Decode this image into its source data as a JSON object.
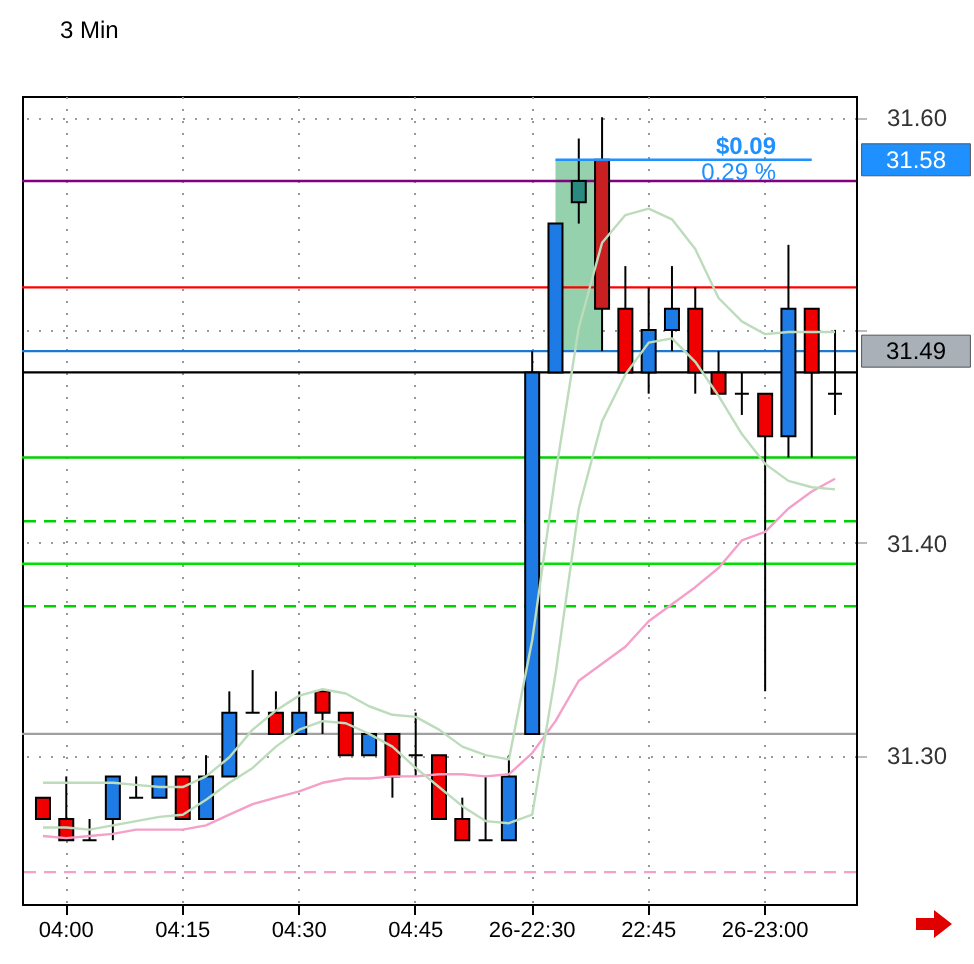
{
  "chart_data": {
    "type": "candlestick",
    "title": "3 Min",
    "categories": [
      null,
      "04:00",
      null,
      null,
      null,
      null,
      "04:15",
      null,
      null,
      null,
      null,
      "04:30",
      null,
      null,
      null,
      null,
      "04:45",
      null,
      null,
      null,
      null,
      "26-22:30",
      null,
      null,
      null,
      null,
      "22:45",
      null,
      null,
      null,
      null,
      "26-23:00",
      null,
      null,
      null
    ],
    "ohlc": [
      [
        31.28,
        31.28,
        31.27,
        31.27
      ],
      [
        31.27,
        31.29,
        31.26,
        31.26
      ],
      [
        31.26,
        31.27,
        31.26,
        31.26
      ],
      [
        31.27,
        31.29,
        31.26,
        31.29
      ],
      [
        31.28,
        31.29,
        31.28,
        31.28
      ],
      [
        31.28,
        31.29,
        31.28,
        31.29
      ],
      [
        31.29,
        31.29,
        31.27,
        31.27
      ],
      [
        31.27,
        31.3,
        31.27,
        31.29
      ],
      [
        31.29,
        31.33,
        31.29,
        31.32
      ],
      [
        31.32,
        31.34,
        31.32,
        31.32
      ],
      [
        31.32,
        31.33,
        31.31,
        31.31
      ],
      [
        31.31,
        31.33,
        31.31,
        31.32
      ],
      [
        31.33,
        31.33,
        31.31,
        31.32
      ],
      [
        31.32,
        31.32,
        31.3,
        31.3
      ],
      [
        31.3,
        31.31,
        31.3,
        31.31
      ],
      [
        31.31,
        31.31,
        31.28,
        31.29
      ],
      [
        31.3,
        31.32,
        31.29,
        31.3
      ],
      [
        31.3,
        31.3,
        31.27,
        31.27
      ],
      [
        31.27,
        31.28,
        31.26,
        31.26
      ],
      [
        31.26,
        31.29,
        31.26,
        31.26
      ],
      [
        31.26,
        31.3,
        31.26,
        31.29
      ],
      [
        31.31,
        31.49,
        31.31,
        31.48
      ],
      [
        31.48,
        31.55,
        31.48,
        31.55
      ],
      [
        31.56,
        31.59,
        31.55,
        31.57
      ],
      [
        31.58,
        31.6,
        31.49,
        31.51
      ],
      [
        31.51,
        31.53,
        31.48,
        31.48
      ],
      [
        31.48,
        31.52,
        31.47,
        31.5
      ],
      [
        31.5,
        31.53,
        31.49,
        31.51
      ],
      [
        31.51,
        31.52,
        31.47,
        31.48
      ],
      [
        31.48,
        31.49,
        31.47,
        31.47
      ],
      [
        31.47,
        31.48,
        31.46,
        31.47
      ],
      [
        31.47,
        31.47,
        31.33,
        31.45
      ],
      [
        31.45,
        31.54,
        31.44,
        31.51
      ],
      [
        31.51,
        31.51,
        31.44,
        31.48
      ],
      [
        31.47,
        31.5,
        31.46,
        31.47
      ]
    ],
    "colors": [
      "#f00000",
      "#f00000",
      "#000000",
      "#1e7be6",
      "#000000",
      "#1e7be6",
      "#f00000",
      "#1e7be6",
      "#1e7be6",
      "#000000",
      "#f00000",
      "#1e7be6",
      "#f00000",
      "#f00000",
      "#1e7be6",
      "#f00000",
      "#000000",
      "#f00000",
      "#f00000",
      "#000000",
      "#1e7be6",
      "#1e7be6",
      "#1e7be6",
      "#2a8a80",
      "#c82020",
      "#f00000",
      "#1e7be6",
      "#1e7be6",
      "#f00000",
      "#f00000",
      "#000000",
      "#f00000",
      "#1e7be6",
      "#f00000",
      "#000000"
    ],
    "series": [
      {
        "type": "line",
        "color": "#f4a0c8",
        "values": [
          31.262,
          31.261,
          31.262,
          31.263,
          31.265,
          31.265,
          31.265,
          31.267,
          31.272,
          31.277,
          31.28,
          31.283,
          31.287,
          31.289,
          31.289,
          31.29,
          31.29,
          31.291,
          31.291,
          31.29,
          31.291,
          31.301,
          31.316,
          31.335,
          31.343,
          31.351,
          31.363,
          31.371,
          31.379,
          31.388,
          31.401,
          31.405,
          31.416,
          31.424,
          31.43
        ]
      },
      {
        "type": "line",
        "color": "#bcdcbc",
        "values": [
          31.287,
          31.287,
          31.287,
          31.287,
          31.286,
          31.285,
          31.285,
          31.29,
          31.299,
          31.312,
          31.321,
          31.328,
          31.331,
          31.329,
          31.323,
          31.319,
          31.318,
          31.312,
          31.304,
          31.3,
          31.298,
          31.354,
          31.432,
          31.501,
          31.541,
          31.554,
          31.557,
          31.552,
          31.538,
          31.515,
          31.504,
          31.498,
          31.499,
          31.499,
          31.499
        ]
      },
      {
        "type": "line",
        "color": "#bcdcbc",
        "values": [
          31.266,
          31.266,
          31.265,
          31.267,
          31.269,
          31.271,
          31.272,
          31.279,
          31.287,
          31.294,
          31.304,
          31.312,
          31.316,
          31.315,
          31.31,
          31.304,
          31.294,
          31.285,
          31.276,
          31.269,
          31.268,
          31.272,
          31.338,
          31.416,
          31.457,
          31.479,
          31.494,
          31.496,
          31.485,
          31.469,
          31.451,
          31.437,
          31.429,
          31.426,
          31.425
        ]
      },
      {
        "type": "line",
        "color": "#8fcfa8",
        "values": [
          null,
          null,
          null,
          null,
          null,
          null,
          null,
          null,
          null,
          null,
          null,
          null,
          null,
          null,
          null,
          null,
          null,
          null,
          null,
          null,
          null,
          null,
          null,
          null,
          null,
          null,
          null,
          null,
          null,
          null,
          null,
          null,
          null,
          null,
          null
        ],
        "lower": [
          null,
          null,
          null,
          null,
          null,
          null,
          null,
          null,
          null,
          null,
          null,
          null,
          null,
          null,
          null,
          null,
          null,
          null,
          null,
          null,
          null,
          null,
          31.49,
          31.49,
          31.49,
          null,
          null,
          null,
          null,
          null,
          null,
          null,
          null,
          null,
          null
        ],
        "upper": [
          null,
          null,
          null,
          null,
          null,
          null,
          null,
          null,
          null,
          null,
          null,
          null,
          null,
          null,
          null,
          null,
          null,
          null,
          null,
          null,
          null,
          null,
          31.58,
          31.58,
          31.58,
          null,
          null,
          null,
          null,
          null,
          null,
          null,
          null,
          null,
          null
        ]
      },
      {
        "type": "line",
        "color": "#1e90ff",
        "name": "31.58",
        "values": [
          null,
          null,
          null,
          null,
          null,
          null,
          null,
          null,
          null,
          null,
          null,
          null,
          null,
          null,
          null,
          null,
          null,
          null,
          null,
          null,
          null,
          null,
          31.58,
          31.58,
          31.58,
          31.58,
          31.58,
          31.58,
          31.58,
          31.58,
          31.58,
          31.58,
          31.58,
          31.58,
          null
        ]
      }
    ],
    "ref_lines": [
      {
        "axis": "y",
        "value": 31.57,
        "color": "#800080"
      },
      {
        "axis": "y",
        "value": 31.52,
        "color": "#ff0000"
      },
      {
        "axis": "y",
        "value": 31.49,
        "color": "#1e78d2",
        "label": "31.49"
      },
      {
        "axis": "y",
        "value": 31.48,
        "color": "#000000"
      },
      {
        "axis": "y",
        "value": 31.44,
        "color": "#00d000"
      },
      {
        "axis": "y",
        "value": 31.41,
        "color": "#00d000",
        "line_style": "dashed"
      },
      {
        "axis": "y",
        "value": 31.39,
        "color": "#00e000"
      },
      {
        "axis": "y",
        "value": 31.37,
        "color": "#00d000",
        "line_style": "dashed"
      },
      {
        "axis": "y",
        "value": 31.31,
        "color": "#a0a0a0"
      },
      {
        "axis": "y",
        "value": 31.245,
        "color": "#f4a0c8",
        "line_style": "dashed"
      }
    ],
    "annotations": [
      "$0.09",
      "0.29 %"
    ],
    "ylim": [
      31.23,
      31.61
    ],
    "yticks": [
      {
        "value": 31.3,
        "label": "31.30"
      },
      {
        "value": 31.4,
        "label": "31.40"
      },
      {
        "value": 31.5,
        "label": null
      },
      {
        "value": 31.6,
        "label": "31.60"
      }
    ],
    "grid": true,
    "marker": "none"
  }
}
